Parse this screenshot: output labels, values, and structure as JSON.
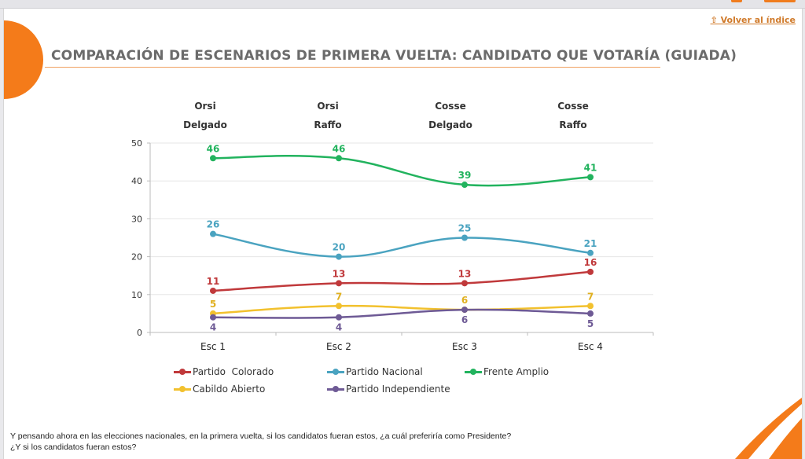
{
  "header": {
    "back_link": "⇧ Volver al índice",
    "title": "COMPARACIÓN DE ESCENARIOS DE PRIMERA VUELTA: CANDIDATO QUE VOTARÍA (GUIADA)"
  },
  "scenarios": [
    {
      "line1": "Orsi",
      "line2": "Delgado"
    },
    {
      "line1": "Orsi",
      "line2": "Raffo"
    },
    {
      "line1": "Cosse",
      "line2": "Delgado"
    },
    {
      "line1": "Cosse",
      "line2": "Raffo"
    }
  ],
  "question": {
    "line1": "Y pensando ahora en las elecciones nacionales, en la primera vuelta, si los candidatos fueran estos, ¿a cuál preferiría como Presidente?",
    "line2": "¿Y si los candidatos fueran estos?"
  },
  "colors": {
    "accent": "#f47b1a",
    "title": "#6b6b6b"
  },
  "chart_data": {
    "type": "line",
    "title": "",
    "xlabel": "",
    "ylabel": "",
    "categories": [
      "Esc 1",
      "Esc 2",
      "Esc 3",
      "Esc 4"
    ],
    "ylim": [
      0,
      50
    ],
    "yticks": [
      0,
      10,
      20,
      30,
      40,
      50
    ],
    "grid": true,
    "smooth": true,
    "legend_position": "bottom",
    "series": [
      {
        "name": "Partido  Colorado",
        "color": "#c0393b",
        "values": [
          11,
          13,
          13,
          16
        ],
        "label_pos": "above"
      },
      {
        "name": "Partido Nacional",
        "color": "#4aa3c0",
        "values": [
          26,
          20,
          25,
          21
        ],
        "label_pos": "above"
      },
      {
        "name": "Frente Amplio",
        "color": "#22b35e",
        "values": [
          46,
          46,
          39,
          41
        ],
        "label_pos": "above"
      },
      {
        "name": "Cabildo Abierto",
        "color": "#f2c12e",
        "values": [
          5,
          7,
          6,
          7
        ],
        "label_pos": "above"
      },
      {
        "name": "Partido Independiente",
        "color": "#6e5a95",
        "values": [
          4,
          4,
          6,
          5
        ],
        "label_pos": "below"
      }
    ]
  }
}
